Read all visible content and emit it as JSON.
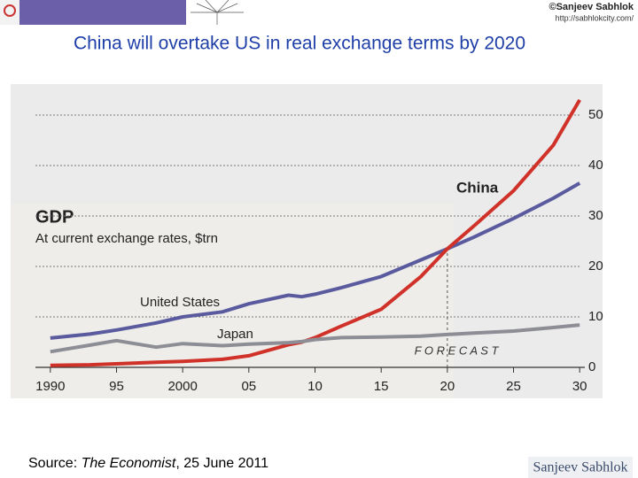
{
  "header": {
    "copyright": "©Sanjeev Sabhlok",
    "url": "http://sabhlokcity.com/"
  },
  "title": "China will overtake US in real exchange terms by 2020",
  "chart_data": {
    "type": "line",
    "title": "GDP",
    "subtitle": "At current exchange rates, $trn",
    "x": [
      1990,
      1993,
      1995,
      1998,
      2000,
      2003,
      2005,
      2008,
      2009,
      2010,
      2012,
      2015,
      2018,
      2020,
      2022,
      2025,
      2028,
      2030
    ],
    "series": [
      {
        "name": "United States",
        "color": "#5a5a9e",
        "values": [
          5.8,
          6.6,
          7.4,
          8.8,
          10,
          11,
          12.6,
          14.3,
          14,
          14.5,
          15.8,
          18,
          21.3,
          23.5,
          25.8,
          29.5,
          33.5,
          36.5
        ]
      },
      {
        "name": "China",
        "color": "#d0322a",
        "values": [
          0.4,
          0.5,
          0.7,
          1.0,
          1.2,
          1.6,
          2.3,
          4.5,
          5.0,
          5.9,
          8.2,
          11.5,
          18,
          23.5,
          28,
          35,
          44,
          53
        ]
      },
      {
        "name": "Japan",
        "color": "#8d8d95",
        "values": [
          3.1,
          4.4,
          5.3,
          4.0,
          4.7,
          4.3,
          4.6,
          4.9,
          5.1,
          5.5,
          5.9,
          6,
          6.2,
          6.5,
          6.8,
          7.2,
          7.9,
          8.4
        ]
      }
    ],
    "xlim": [
      1987,
      2031.5
    ],
    "ylim": [
      0,
      55
    ],
    "xticks": [
      1990,
      {
        "value": 1995,
        "label": "95"
      },
      2000,
      {
        "value": 2005,
        "label": "05"
      },
      {
        "value": 2010,
        "label": "10"
      },
      {
        "value": 2015,
        "label": "15"
      },
      {
        "value": 2020,
        "label": "20"
      },
      {
        "value": 2025,
        "label": "25"
      },
      {
        "value": 2030,
        "label": "30"
      }
    ],
    "yticks": [
      0,
      10,
      20,
      30,
      40,
      50
    ],
    "grid": true,
    "forecast_label": "F O R E C A S T",
    "forecast_from": 2020
  },
  "footer": {
    "source_prefix": "Source: ",
    "source_publication": "The Economist",
    "source_date": ", 25 June 2011",
    "logo": "Sanjeev Sabhlok"
  }
}
